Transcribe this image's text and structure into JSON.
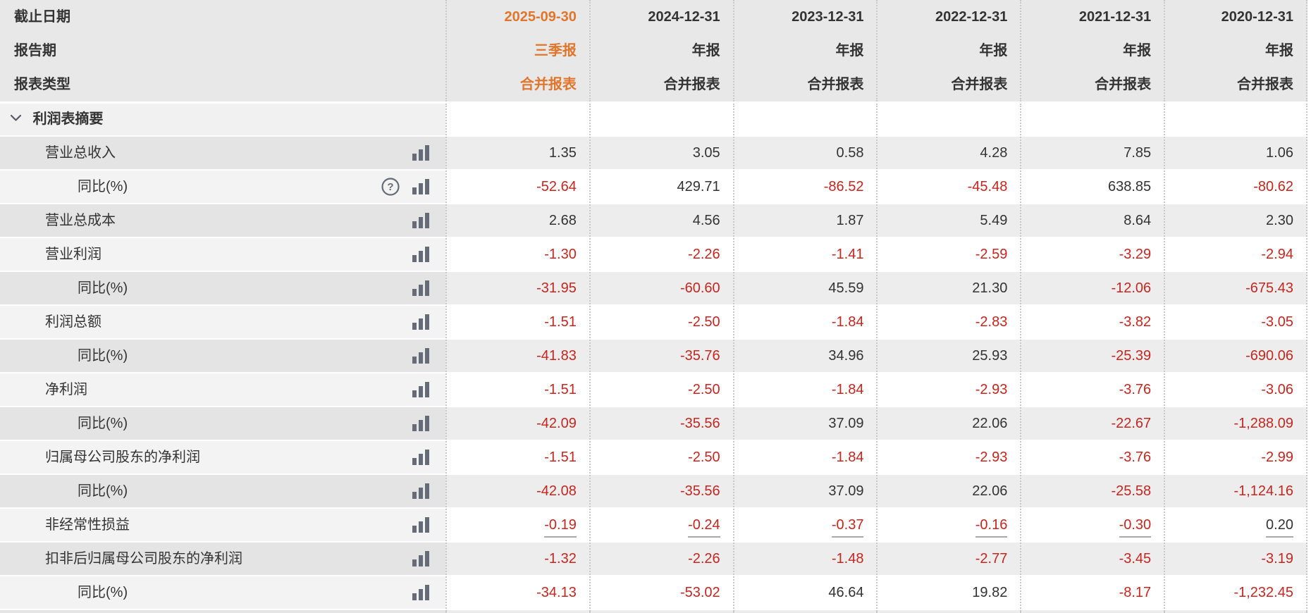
{
  "colors": {
    "accent_orange": "#e0762c",
    "negative_red": "#c5261f",
    "text_dark": "#333333",
    "icon_gray": "#666c77",
    "row_gray": "#ededed",
    "header_gray": "#e8e8e8"
  },
  "header": {
    "label_rows": [
      "截止日期",
      "报告期",
      "报表类型"
    ],
    "columns": [
      {
        "date": "2025-09-30",
        "period": "三季报",
        "type": "合并报表",
        "highlight": true
      },
      {
        "date": "2024-12-31",
        "period": "年报",
        "type": "合并报表",
        "highlight": false
      },
      {
        "date": "2023-12-31",
        "period": "年报",
        "type": "合并报表",
        "highlight": false
      },
      {
        "date": "2022-12-31",
        "period": "年报",
        "type": "合并报表",
        "highlight": false
      },
      {
        "date": "2021-12-31",
        "period": "年报",
        "type": "合并报表",
        "highlight": false
      },
      {
        "date": "2020-12-31",
        "period": "年报",
        "type": "合并报表",
        "highlight": false
      }
    ]
  },
  "section": {
    "title": "利润表摘要"
  },
  "rows": [
    {
      "label": "营业总收入",
      "indent": 1,
      "has_question_icon": false,
      "underline_values": false,
      "values": [
        "1.35",
        "3.05",
        "0.58",
        "4.28",
        "7.85",
        "1.06"
      ]
    },
    {
      "label": "同比(%)",
      "indent": 2,
      "has_question_icon": true,
      "underline_values": false,
      "values": [
        "-52.64",
        "429.71",
        "-86.52",
        "-45.48",
        "638.85",
        "-80.62"
      ]
    },
    {
      "label": "营业总成本",
      "indent": 1,
      "has_question_icon": false,
      "underline_values": false,
      "values": [
        "2.68",
        "4.56",
        "1.87",
        "5.49",
        "8.64",
        "2.30"
      ]
    },
    {
      "label": "营业利润",
      "indent": 1,
      "has_question_icon": false,
      "underline_values": false,
      "values": [
        "-1.30",
        "-2.26",
        "-1.41",
        "-2.59",
        "-3.29",
        "-2.94"
      ]
    },
    {
      "label": "同比(%)",
      "indent": 2,
      "has_question_icon": false,
      "underline_values": false,
      "values": [
        "-31.95",
        "-60.60",
        "45.59",
        "21.30",
        "-12.06",
        "-675.43"
      ]
    },
    {
      "label": "利润总额",
      "indent": 1,
      "has_question_icon": false,
      "underline_values": false,
      "values": [
        "-1.51",
        "-2.50",
        "-1.84",
        "-2.83",
        "-3.82",
        "-3.05"
      ]
    },
    {
      "label": "同比(%)",
      "indent": 2,
      "has_question_icon": false,
      "underline_values": false,
      "values": [
        "-41.83",
        "-35.76",
        "34.96",
        "25.93",
        "-25.39",
        "-690.06"
      ]
    },
    {
      "label": "净利润",
      "indent": 1,
      "has_question_icon": false,
      "underline_values": false,
      "values": [
        "-1.51",
        "-2.50",
        "-1.84",
        "-2.93",
        "-3.76",
        "-3.06"
      ]
    },
    {
      "label": "同比(%)",
      "indent": 2,
      "has_question_icon": false,
      "underline_values": false,
      "values": [
        "-42.09",
        "-35.56",
        "37.09",
        "22.06",
        "-22.67",
        "-1,288.09"
      ]
    },
    {
      "label": "归属母公司股东的净利润",
      "indent": 1,
      "has_question_icon": false,
      "underline_values": false,
      "values": [
        "-1.51",
        "-2.50",
        "-1.84",
        "-2.93",
        "-3.76",
        "-2.99"
      ]
    },
    {
      "label": "同比(%)",
      "indent": 2,
      "has_question_icon": false,
      "underline_values": false,
      "values": [
        "-42.08",
        "-35.56",
        "37.09",
        "22.06",
        "-25.58",
        "-1,124.16"
      ]
    },
    {
      "label": "非经常性损益",
      "indent": 1,
      "has_question_icon": false,
      "underline_values": true,
      "values": [
        "-0.19",
        "-0.24",
        "-0.37",
        "-0.16",
        "-0.30",
        "0.20"
      ]
    },
    {
      "label": "扣非后归属母公司股东的净利润",
      "indent": 1,
      "has_question_icon": false,
      "underline_values": false,
      "values": [
        "-1.32",
        "-2.26",
        "-1.48",
        "-2.77",
        "-3.45",
        "-3.19"
      ]
    },
    {
      "label": "同比(%)",
      "indent": 2,
      "has_question_icon": false,
      "underline_values": false,
      "values": [
        "-34.13",
        "-53.02",
        "46.64",
        "19.82",
        "-8.17",
        "-1,232.45"
      ]
    }
  ]
}
